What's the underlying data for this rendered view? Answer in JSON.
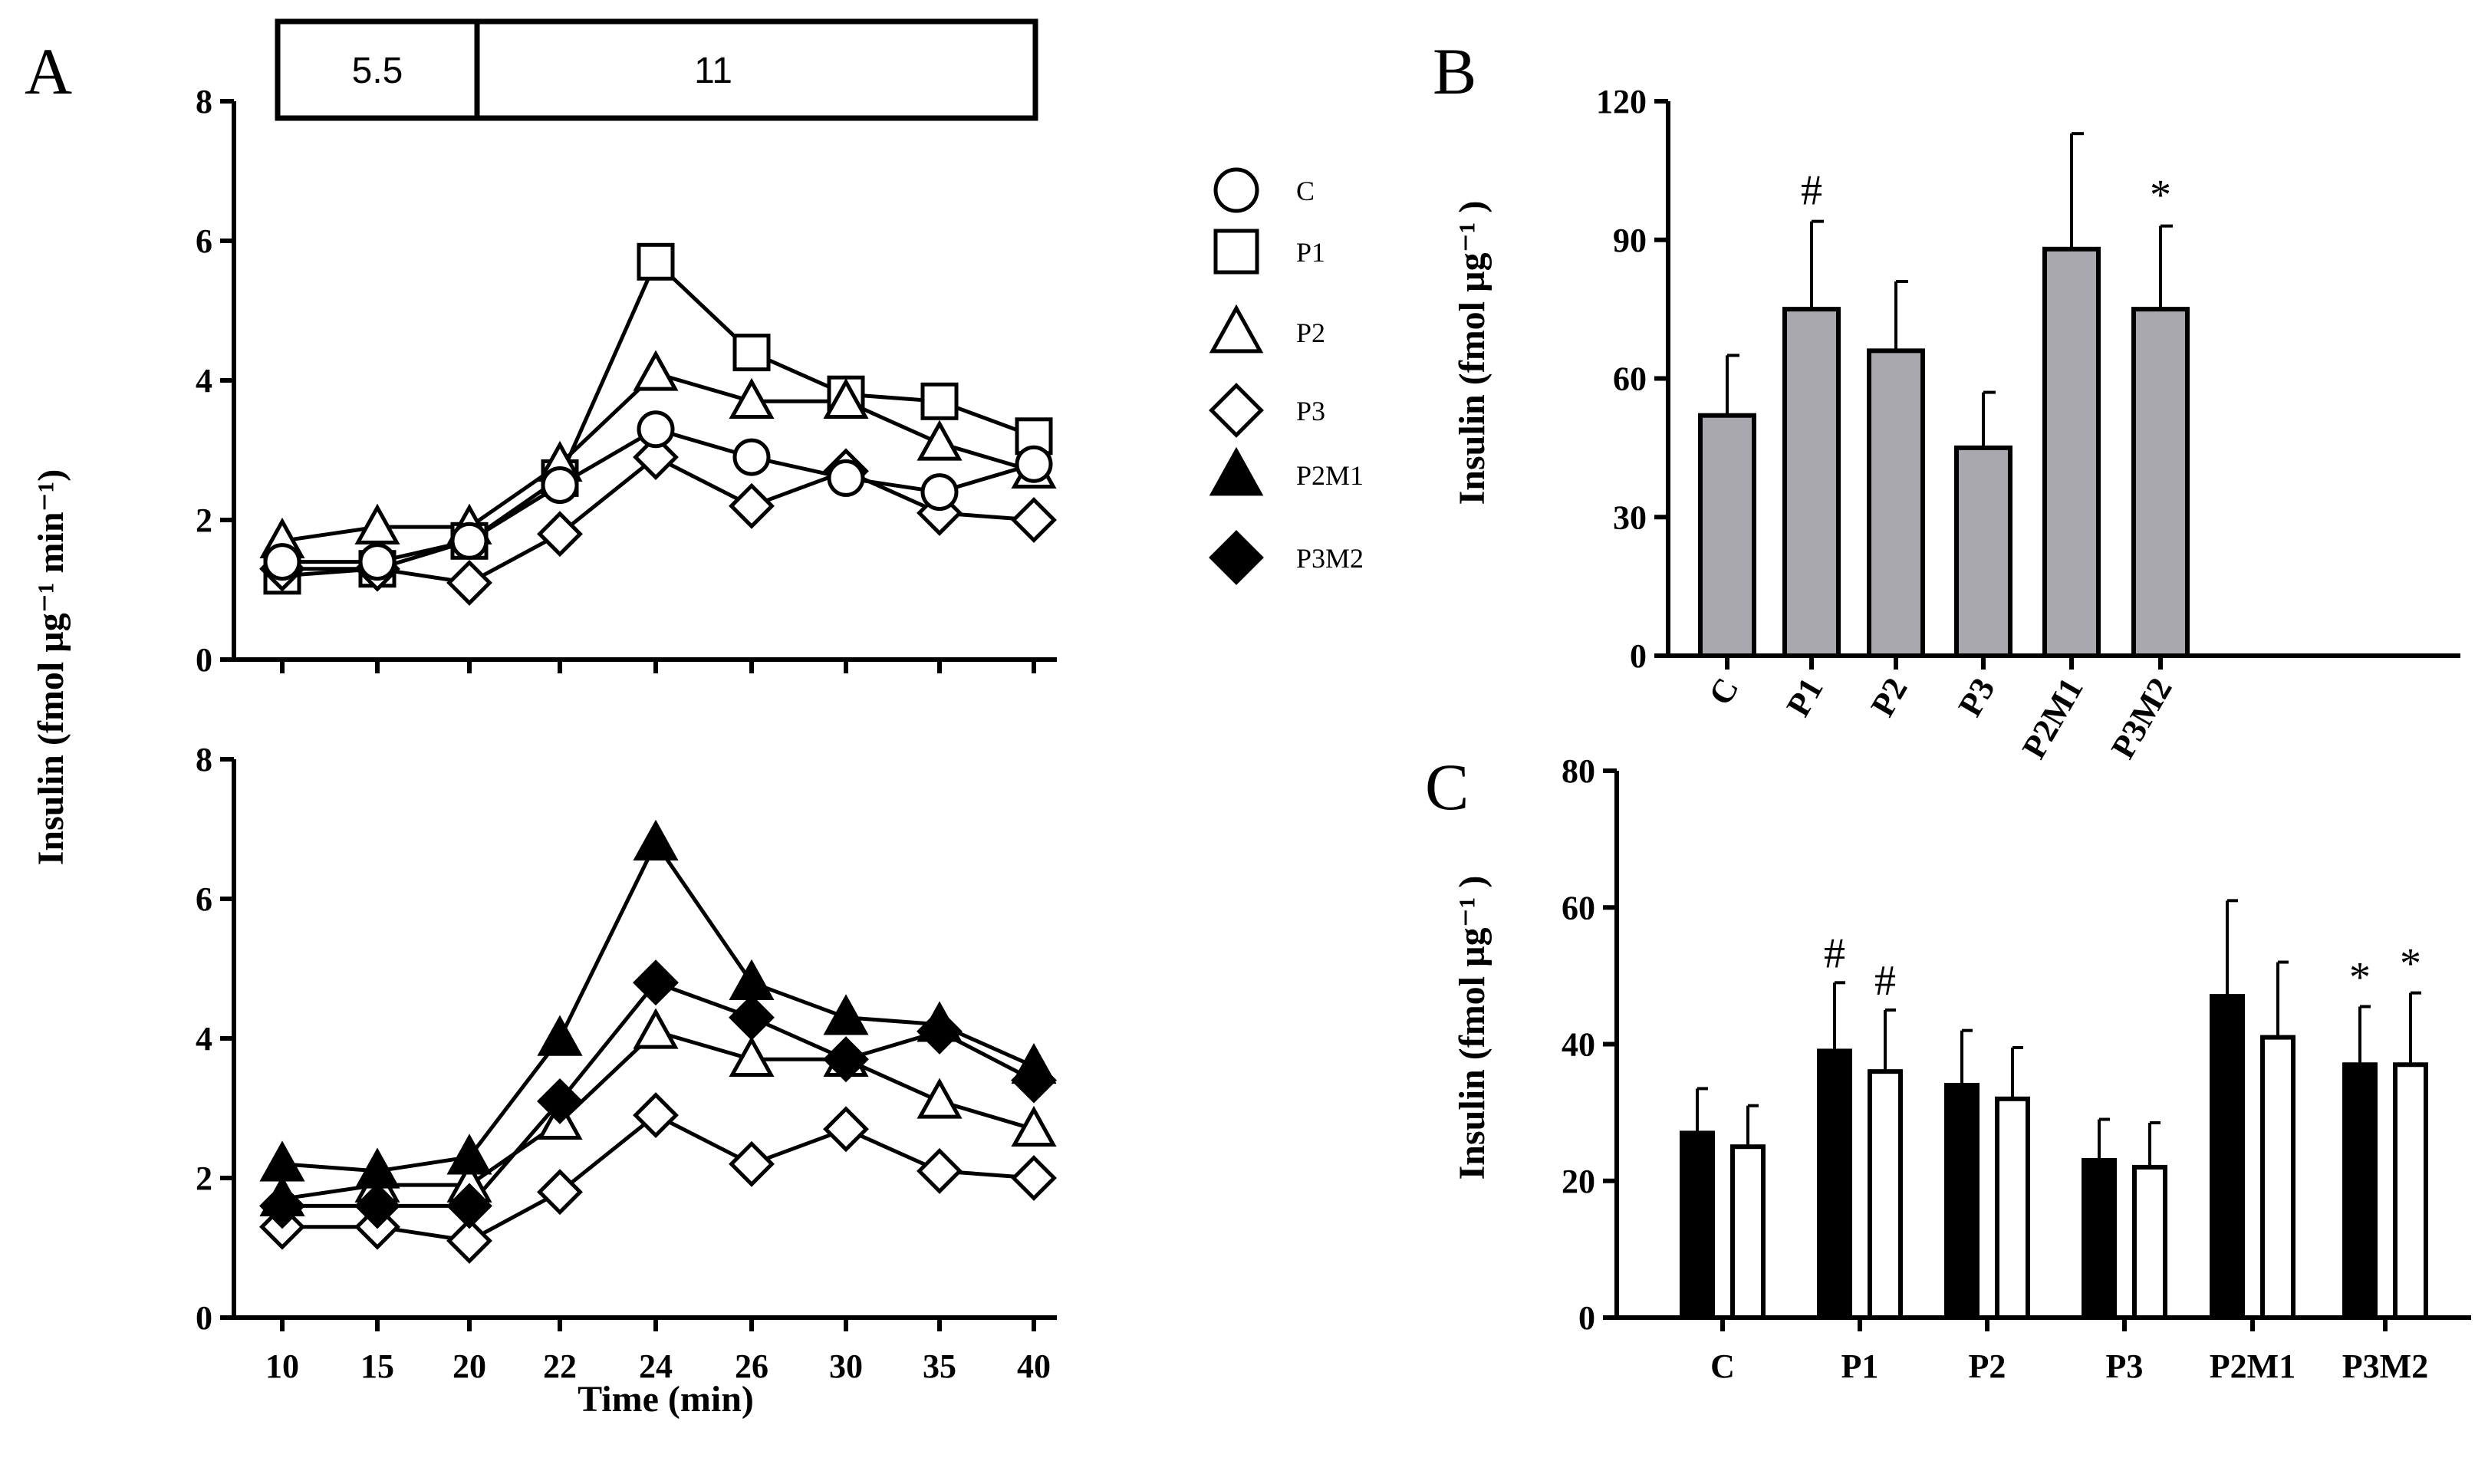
{
  "figure": {
    "panel_a_label": "A",
    "panel_b_label": "B",
    "panel_c_label": "C",
    "glucose_box": [
      "5.5",
      "11"
    ],
    "a_ylabel": "Insulin  (fmol µg⁻¹ min⁻¹)",
    "a_xlabel": "Time (min)",
    "b_ylabel": "Insulin  (fmol µg⁻¹ )",
    "c_ylabel": "Insulin  (fmol µg⁻¹ )"
  },
  "legend": [
    {
      "name": "C",
      "marker": "circle",
      "fill": "white"
    },
    {
      "name": "P1",
      "marker": "square",
      "fill": "white"
    },
    {
      "name": "P2",
      "marker": "triangle",
      "fill": "white"
    },
    {
      "name": "P3",
      "marker": "diamond",
      "fill": "white"
    },
    {
      "name": "P2M1",
      "marker": "triangle",
      "fill": "black"
    },
    {
      "name": "P3M2",
      "marker": "diamond",
      "fill": "black"
    }
  ],
  "chart_data": [
    {
      "id": "A-top",
      "type": "line",
      "x": [
        10,
        15,
        20,
        22,
        24,
        26,
        30,
        35,
        40
      ],
      "xticks": [
        "10",
        "15",
        "20",
        "22",
        "24",
        "26",
        "30",
        "35",
        "40"
      ],
      "ylim": [
        0,
        8
      ],
      "yticks": [
        0,
        2,
        4,
        6,
        8
      ],
      "series": [
        {
          "name": "P1",
          "marker": "square",
          "fill": "white",
          "values": [
            1.2,
            1.3,
            1.7,
            2.6,
            5.7,
            4.4,
            3.8,
            3.7,
            3.2
          ]
        },
        {
          "name": "P2",
          "marker": "triangle",
          "fill": "white",
          "values": [
            1.7,
            1.9,
            1.9,
            2.8,
            4.1,
            3.7,
            3.7,
            3.1,
            2.7
          ]
        },
        {
          "name": "P3",
          "marker": "diamond",
          "fill": "white",
          "values": [
            1.3,
            1.3,
            1.1,
            1.8,
            2.9,
            2.2,
            2.7,
            2.1,
            2.0
          ]
        },
        {
          "name": "C",
          "marker": "circle",
          "fill": "white",
          "values": [
            1.4,
            1.4,
            1.7,
            2.5,
            3.3,
            2.9,
            2.6,
            2.4,
            2.8
          ]
        }
      ]
    },
    {
      "id": "A-bottom",
      "type": "line",
      "x": [
        10,
        15,
        20,
        22,
        24,
        26,
        30,
        35,
        40
      ],
      "xticks": [
        "10",
        "15",
        "20",
        "22",
        "24",
        "26",
        "30",
        "35",
        "40"
      ],
      "xlabel": "Time (min)",
      "ylim": [
        0,
        8
      ],
      "yticks": [
        0,
        2,
        4,
        6,
        8
      ],
      "series": [
        {
          "name": "P2",
          "marker": "triangle",
          "fill": "white",
          "values": [
            1.7,
            1.9,
            1.9,
            2.8,
            4.1,
            3.7,
            3.7,
            3.1,
            2.7
          ]
        },
        {
          "name": "P3",
          "marker": "diamond",
          "fill": "white",
          "values": [
            1.3,
            1.3,
            1.1,
            1.8,
            2.9,
            2.2,
            2.7,
            2.1,
            2.0
          ]
        },
        {
          "name": "P2M1",
          "marker": "triangle",
          "fill": "black",
          "values": [
            2.2,
            2.1,
            2.3,
            4.0,
            6.8,
            4.8,
            4.3,
            4.2,
            3.6
          ]
        },
        {
          "name": "P3M2",
          "marker": "diamond",
          "fill": "black",
          "values": [
            1.6,
            1.6,
            1.6,
            3.1,
            4.8,
            4.3,
            3.7,
            4.1,
            3.4
          ]
        }
      ]
    },
    {
      "id": "B",
      "type": "bar",
      "categories": [
        "C",
        "P1",
        "P2",
        "P3",
        "P2M1",
        "P3M2"
      ],
      "values": [
        52,
        75,
        66,
        45,
        88,
        75
      ],
      "errors": [
        13,
        19,
        15,
        12,
        25,
        18
      ],
      "annotations": [
        "",
        "#",
        "",
        "",
        "",
        "*"
      ],
      "ylim": [
        0,
        120
      ],
      "yticks": [
        0,
        30,
        60,
        90,
        120
      ],
      "bar_color": "#a8a8ae"
    },
    {
      "id": "C",
      "type": "bar",
      "categories": [
        "C",
        "P1",
        "P2",
        "P3",
        "P2M1",
        "P3M2"
      ],
      "series": [
        {
          "name": "black",
          "fill": "black",
          "values": [
            27,
            39,
            34,
            23,
            47,
            37
          ],
          "errors": [
            6.5,
            10,
            8,
            6,
            14,
            8.5
          ],
          "annotations": [
            "",
            "#",
            "",
            "",
            "",
            "*"
          ]
        },
        {
          "name": "white",
          "fill": "white",
          "values": [
            25,
            36,
            32,
            22,
            41,
            37
          ],
          "errors": [
            6,
            9,
            7.5,
            6.5,
            11,
            10.5
          ],
          "annotations": [
            "",
            "#",
            "",
            "",
            "",
            "*"
          ]
        }
      ],
      "ylim": [
        0,
        80
      ],
      "yticks": [
        0,
        20,
        40,
        60,
        80
      ]
    }
  ]
}
